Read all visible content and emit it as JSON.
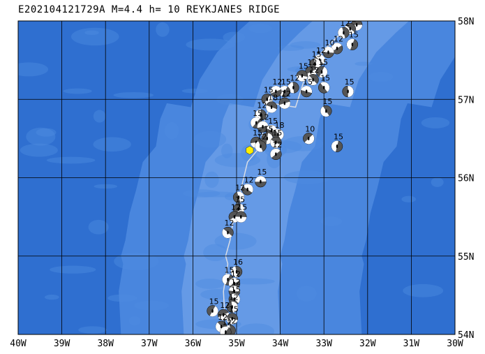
{
  "title": "E202104121729A M=4.4 h= 10 REYKJANES RIDGE",
  "map": {
    "lon_min": -40,
    "lon_max": -30,
    "lat_min": 54,
    "lat_max": 58,
    "lon_labels": [
      "40W",
      "39W",
      "38W",
      "37W",
      "36W",
      "35W",
      "34W",
      "33W",
      "32W",
      "31W",
      "30W"
    ],
    "lat_labels": [
      "54N",
      "55N",
      "56N",
      "57N",
      "58N"
    ],
    "colors": {
      "ocean_deep": "#2f6fd0",
      "ocean_shallow": "#4d8be0",
      "ridge": "#6a9ee8",
      "grid": "#000000",
      "plate_boundary": "#d8dde6",
      "epicenter": "#ffee00",
      "beachball_dark": "#555555",
      "beachball_light": "#ffffff"
    }
  },
  "epicenter": {
    "lon": -34.7,
    "lat": 56.35,
    "symbol": "yellow-hexagon"
  },
  "plate_boundary": [
    [
      -35.25,
      54.0
    ],
    [
      -35.3,
      54.55
    ],
    [
      -35.2,
      54.9
    ],
    [
      -35.25,
      55.0
    ],
    [
      -35.15,
      55.2
    ],
    [
      -35.05,
      55.55
    ],
    [
      -34.9,
      55.85
    ],
    [
      -34.75,
      56.2
    ],
    [
      -34.45,
      56.4
    ],
    [
      -34.35,
      56.75
    ],
    [
      -34.2,
      56.95
    ],
    [
      -33.65,
      56.9
    ],
    [
      -33.45,
      57.25
    ],
    [
      -33.05,
      57.6
    ],
    [
      -32.6,
      57.85
    ],
    [
      -32.3,
      58.0
    ]
  ],
  "mechanisms": [
    {
      "lon": -32.25,
      "lat": 57.95,
      "depth": "15"
    },
    {
      "lon": -32.4,
      "lat": 57.9,
      "depth": "12"
    },
    {
      "lon": -32.55,
      "lat": 57.85,
      "depth": "12"
    },
    {
      "lon": -32.35,
      "lat": 57.7,
      "depth": "15"
    },
    {
      "lon": -32.7,
      "lat": 57.65,
      "depth": "12"
    },
    {
      "lon": -32.9,
      "lat": 57.6,
      "depth": "10"
    },
    {
      "lon": -33.1,
      "lat": 57.5,
      "depth": "12"
    },
    {
      "lon": -33.2,
      "lat": 57.45,
      "depth": "15"
    },
    {
      "lon": -33.05,
      "lat": 57.35,
      "depth": "15"
    },
    {
      "lon": -33.3,
      "lat": 57.35,
      "depth": "12"
    },
    {
      "lon": -33.5,
      "lat": 57.3,
      "depth": "15"
    },
    {
      "lon": -33.25,
      "lat": 57.25,
      "depth": "12"
    },
    {
      "lon": -33.7,
      "lat": 57.15,
      "depth": "12"
    },
    {
      "lon": -33.9,
      "lat": 57.1,
      "depth": "15"
    },
    {
      "lon": -34.1,
      "lat": 57.1,
      "depth": "12"
    },
    {
      "lon": -33.4,
      "lat": 57.1,
      "depth": "15"
    },
    {
      "lon": -33.0,
      "lat": 57.15,
      "depth": "15"
    },
    {
      "lon": -32.45,
      "lat": 57.1,
      "depth": "15"
    },
    {
      "lon": -34.3,
      "lat": 57.0,
      "depth": "15"
    },
    {
      "lon": -33.9,
      "lat": 56.95,
      "depth": "12"
    },
    {
      "lon": -34.2,
      "lat": 56.9,
      "depth": "18"
    },
    {
      "lon": -32.95,
      "lat": 56.85,
      "depth": "15"
    },
    {
      "lon": -34.45,
      "lat": 56.8,
      "depth": "12"
    },
    {
      "lon": -34.55,
      "lat": 56.7,
      "depth": "15"
    },
    {
      "lon": -34.4,
      "lat": 56.65,
      "depth": "12"
    },
    {
      "lon": -34.2,
      "lat": 56.6,
      "depth": "15"
    },
    {
      "lon": -34.05,
      "lat": 56.55,
      "depth": "18"
    },
    {
      "lon": -34.3,
      "lat": 56.5,
      "depth": "15"
    },
    {
      "lon": -33.35,
      "lat": 56.5,
      "depth": "10"
    },
    {
      "lon": -34.55,
      "lat": 56.45,
      "depth": "15"
    },
    {
      "lon": -34.1,
      "lat": 56.45,
      "depth": "15"
    },
    {
      "lon": -34.45,
      "lat": 56.4,
      "depth": "12"
    },
    {
      "lon": -32.7,
      "lat": 56.4,
      "depth": "15"
    },
    {
      "lon": -34.1,
      "lat": 56.3,
      "depth": "12"
    },
    {
      "lon": -34.45,
      "lat": 55.95,
      "depth": "15"
    },
    {
      "lon": -34.75,
      "lat": 55.85,
      "depth": "12"
    },
    {
      "lon": -34.95,
      "lat": 55.75,
      "depth": "12"
    },
    {
      "lon": -34.95,
      "lat": 55.6,
      "depth": "15"
    },
    {
      "lon": -35.05,
      "lat": 55.5,
      "depth": "12"
    },
    {
      "lon": -34.9,
      "lat": 55.5,
      "depth": "15"
    },
    {
      "lon": -35.2,
      "lat": 55.3,
      "depth": "12"
    },
    {
      "lon": -35.0,
      "lat": 54.8,
      "depth": "16"
    },
    {
      "lon": -35.2,
      "lat": 54.7,
      "depth": "15"
    },
    {
      "lon": -35.05,
      "lat": 54.65,
      "depth": "12"
    },
    {
      "lon": -35.05,
      "lat": 54.55,
      "depth": "12"
    },
    {
      "lon": -35.05,
      "lat": 54.45,
      "depth": "15"
    },
    {
      "lon": -35.1,
      "lat": 54.35,
      "depth": "12"
    },
    {
      "lon": -35.55,
      "lat": 54.3,
      "depth": "15"
    },
    {
      "lon": -35.3,
      "lat": 54.25,
      "depth": "12"
    },
    {
      "lon": -35.1,
      "lat": 54.2,
      "depth": "15"
    },
    {
      "lon": -35.35,
      "lat": 54.1,
      "depth": "12"
    },
    {
      "lon": -35.15,
      "lat": 54.05,
      "depth": "12"
    },
    {
      "lon": -35.25,
      "lat": 54.03,
      "depth": "12"
    }
  ]
}
